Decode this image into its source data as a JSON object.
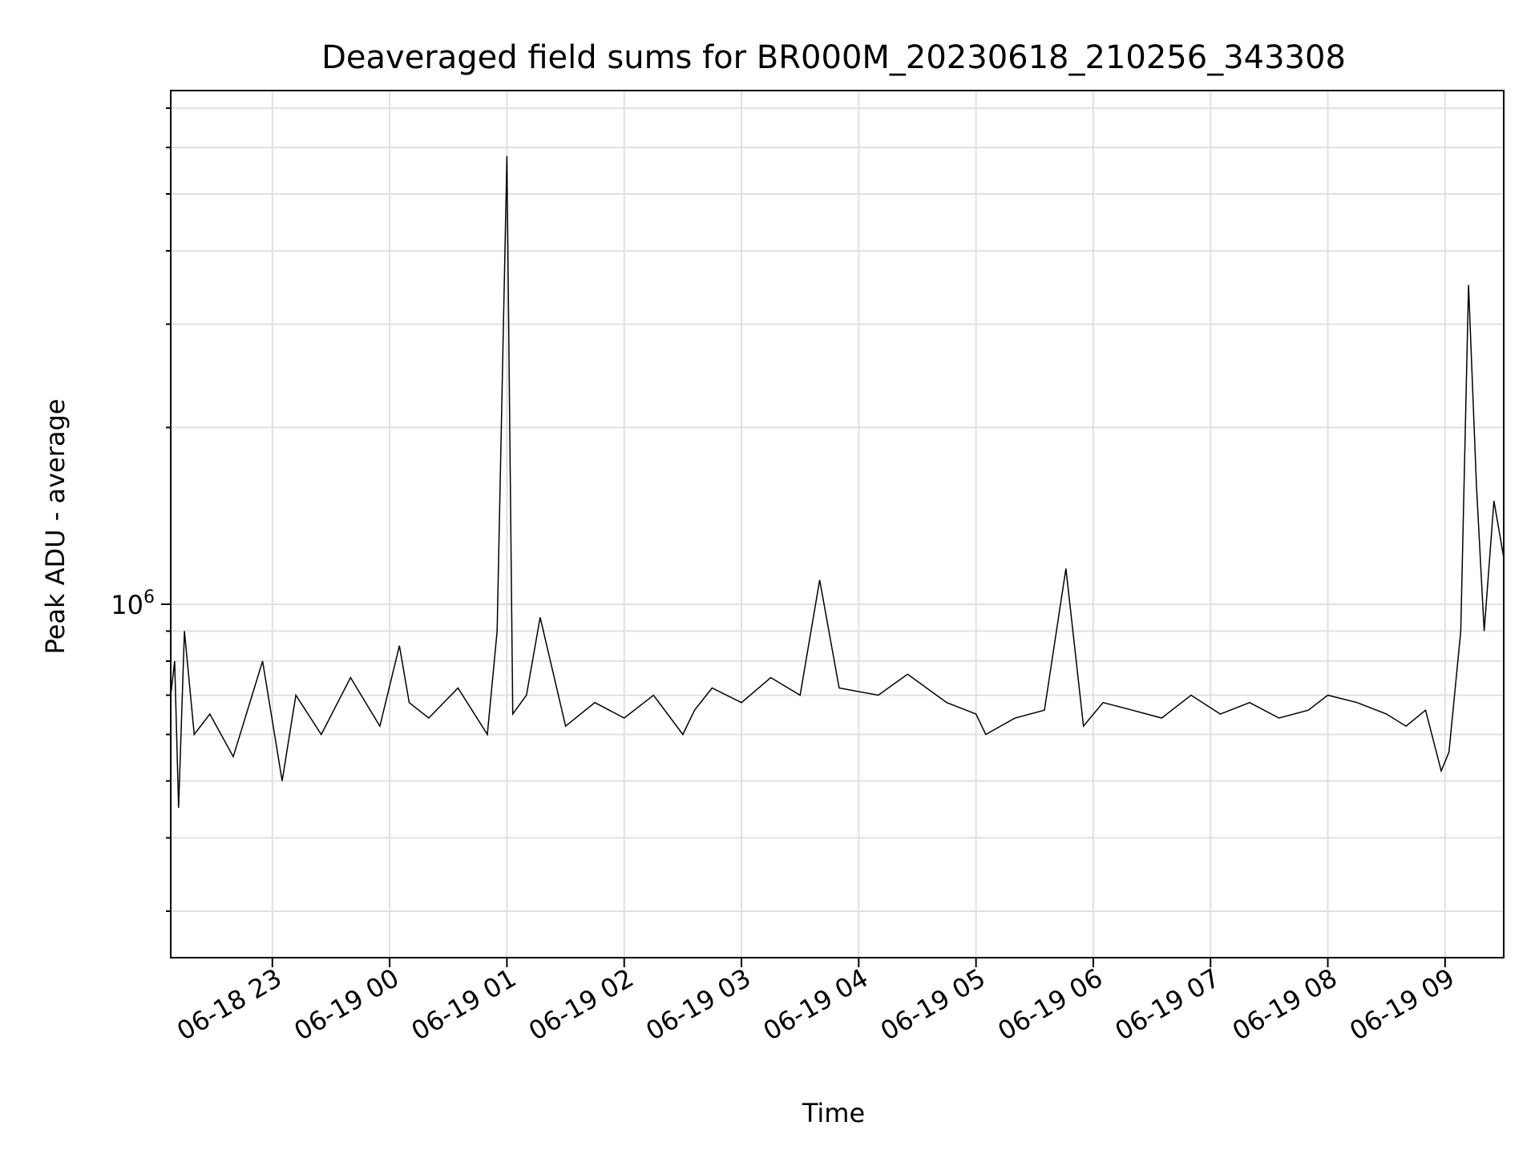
{
  "chart_data": {
    "type": "line",
    "title": "Deaveraged field sums for BR000M_20230618_210256_343308",
    "xlabel": "Time",
    "ylabel": "Peak ADU - average",
    "y_scale": "log",
    "y_tick_label": {
      "base": "10",
      "exponent": "6",
      "value": 1000000
    },
    "xlim": [
      "2023-06-18 22:08",
      "2023-06-19 09:30"
    ],
    "ylim": [
      250000,
      7500000
    ],
    "x_ticks": [
      {
        "t": "2023-06-18 23:00",
        "label": "06-18 23"
      },
      {
        "t": "2023-06-19 00:00",
        "label": "06-19 00"
      },
      {
        "t": "2023-06-19 01:00",
        "label": "06-19 01"
      },
      {
        "t": "2023-06-19 02:00",
        "label": "06-19 02"
      },
      {
        "t": "2023-06-19 03:00",
        "label": "06-19 03"
      },
      {
        "t": "2023-06-19 04:00",
        "label": "06-19 04"
      },
      {
        "t": "2023-06-19 05:00",
        "label": "06-19 05"
      },
      {
        "t": "2023-06-19 06:00",
        "label": "06-19 06"
      },
      {
        "t": "2023-06-19 07:00",
        "label": "06-19 07"
      },
      {
        "t": "2023-06-19 08:00",
        "label": "06-19 08"
      },
      {
        "t": "2023-06-19 09:00",
        "label": "06-19 09"
      }
    ],
    "grid": true,
    "legend": "none",
    "series": [
      {
        "color": "#000000",
        "x": [
          "2023-06-18 22:08",
          "2023-06-18 22:10",
          "2023-06-18 22:12",
          "2023-06-18 22:15",
          "2023-06-18 22:20",
          "2023-06-18 22:28",
          "2023-06-18 22:40",
          "2023-06-18 22:55",
          "2023-06-18 23:05",
          "2023-06-18 23:12",
          "2023-06-18 23:25",
          "2023-06-18 23:40",
          "2023-06-18 23:55",
          "2023-06-19 00:05",
          "2023-06-19 00:10",
          "2023-06-19 00:20",
          "2023-06-19 00:35",
          "2023-06-19 00:50",
          "2023-06-19 00:55",
          "2023-06-19 01:00",
          "2023-06-19 01:03",
          "2023-06-19 01:10",
          "2023-06-19 01:17",
          "2023-06-19 01:30",
          "2023-06-19 01:45",
          "2023-06-19 02:00",
          "2023-06-19 02:15",
          "2023-06-19 02:30",
          "2023-06-19 02:36",
          "2023-06-19 02:45",
          "2023-06-19 03:00",
          "2023-06-19 03:15",
          "2023-06-19 03:30",
          "2023-06-19 03:40",
          "2023-06-19 03:50",
          "2023-06-19 04:10",
          "2023-06-19 04:25",
          "2023-06-19 04:45",
          "2023-06-19 05:00",
          "2023-06-19 05:05",
          "2023-06-19 05:20",
          "2023-06-19 05:35",
          "2023-06-19 05:46",
          "2023-06-19 05:55",
          "2023-06-19 06:05",
          "2023-06-19 06:20",
          "2023-06-19 06:35",
          "2023-06-19 06:50",
          "2023-06-19 07:05",
          "2023-06-19 07:20",
          "2023-06-19 07:35",
          "2023-06-19 07:50",
          "2023-06-19 08:00",
          "2023-06-19 08:15",
          "2023-06-19 08:30",
          "2023-06-19 08:40",
          "2023-06-19 08:50",
          "2023-06-19 08:58",
          "2023-06-19 09:02",
          "2023-06-19 09:08",
          "2023-06-19 09:12",
          "2023-06-19 09:16",
          "2023-06-19 09:20",
          "2023-06-19 09:25",
          "2023-06-19 09:30"
        ],
        "y": [
          700000,
          800000,
          450000,
          900000,
          600000,
          650000,
          550000,
          800000,
          500000,
          700000,
          600000,
          750000,
          620000,
          850000,
          680000,
          640000,
          720000,
          600000,
          900000,
          5800000,
          650000,
          700000,
          950000,
          620000,
          680000,
          640000,
          700000,
          600000,
          660000,
          720000,
          680000,
          750000,
          700000,
          1100000,
          720000,
          700000,
          760000,
          680000,
          650000,
          600000,
          640000,
          660000,
          1150000,
          620000,
          680000,
          660000,
          640000,
          700000,
          650000,
          680000,
          640000,
          660000,
          700000,
          680000,
          650000,
          620000,
          660000,
          520000,
          560000,
          900000,
          3500000,
          1600000,
          900000,
          1500000,
          1200000
        ]
      }
    ]
  }
}
